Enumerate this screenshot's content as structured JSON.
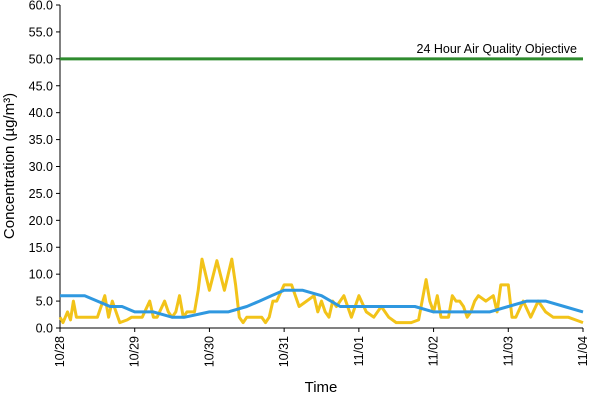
{
  "chart_data": {
    "type": "line",
    "title": "",
    "xlabel": "Time",
    "ylabel": "Concentration (µg/m³)",
    "ylim": [
      0,
      60
    ],
    "xlim": [
      "10/28",
      "11/04"
    ],
    "yticks": [
      "0.0",
      "5.0",
      "10.0",
      "15.0",
      "20.0",
      "25.0",
      "30.0",
      "35.0",
      "40.0",
      "45.0",
      "50.0",
      "55.0",
      "60.0"
    ],
    "xticks": [
      "10/28",
      "10/29",
      "10/30",
      "10/31",
      "11/01",
      "11/02",
      "11/03",
      "11/04"
    ],
    "grid": false,
    "legend": "none",
    "reference_line": {
      "label": "24 Hour Air Quality Objective",
      "value": 50.0,
      "color": "#2e8b2e"
    },
    "series": [
      {
        "color": "#f2c319",
        "x": [
          0.0,
          0.04,
          0.1,
          0.14,
          0.18,
          0.22,
          0.3,
          0.5,
          0.6,
          0.65,
          0.7,
          0.8,
          0.9,
          0.96,
          1.0,
          1.1,
          1.2,
          1.25,
          1.3,
          1.4,
          1.45,
          1.5,
          1.55,
          1.6,
          1.65,
          1.7,
          1.8,
          1.85,
          1.9,
          2.0,
          2.1,
          2.2,
          2.3,
          2.35,
          2.4,
          2.45,
          2.5,
          2.55,
          2.6,
          2.65,
          2.7,
          2.75,
          2.8,
          2.85,
          2.9,
          3.0,
          3.1,
          3.2,
          3.3,
          3.4,
          3.45,
          3.5,
          3.55,
          3.6,
          3.65,
          3.7,
          3.8,
          3.9,
          4.0,
          4.1,
          4.2,
          4.3,
          4.4,
          4.5,
          4.6,
          4.7,
          4.8,
          4.9,
          4.95,
          5.0,
          5.05,
          5.1,
          5.2,
          5.25,
          5.3,
          5.35,
          5.4,
          5.45,
          5.5,
          5.55,
          5.6,
          5.7,
          5.8,
          5.85,
          5.9,
          6.0,
          6.05,
          6.1,
          6.2,
          6.3,
          6.4,
          6.5,
          6.6,
          6.7,
          6.8,
          6.9,
          7.0
        ],
        "values": [
          2,
          1,
          3,
          1.5,
          5,
          2,
          2,
          2,
          6,
          2,
          5,
          1,
          1.5,
          2,
          2,
          2,
          5,
          2,
          2,
          5,
          3,
          2,
          3,
          6,
          2,
          3,
          3,
          7,
          12.8,
          7,
          12.5,
          7,
          12.8,
          8,
          2,
          1,
          2,
          2,
          2,
          2,
          2,
          1,
          2,
          5,
          5,
          8,
          8,
          4,
          5,
          6,
          3,
          5,
          3,
          2,
          5,
          4,
          6,
          2,
          6,
          3,
          2,
          4,
          2,
          1,
          1,
          1,
          1.5,
          9,
          5,
          3,
          6,
          2,
          2,
          6,
          5,
          5,
          4,
          2,
          3,
          5,
          6,
          5,
          6,
          3,
          8,
          8,
          2,
          2,
          5,
          2,
          5,
          3,
          2,
          2,
          2,
          1.5,
          1
        ],
        "values_note_removed": ""
      },
      {
        "color": "#2f98e0",
        "x": [
          0.0,
          0.33,
          0.5,
          0.67,
          0.83,
          1.0,
          1.25,
          1.5,
          1.67,
          2.0,
          2.25,
          2.5,
          2.67,
          2.83,
          3.0,
          3.25,
          3.5,
          3.75,
          4.0,
          4.25,
          4.5,
          4.75,
          5.0,
          5.25,
          5.5,
          5.75,
          6.0,
          6.25,
          6.5,
          6.75,
          7.0
        ],
        "values": [
          6,
          6,
          5,
          4,
          4,
          3,
          3,
          2,
          2,
          3,
          3,
          4,
          5,
          6,
          7,
          7,
          6,
          4,
          4,
          4,
          4,
          4,
          3,
          3,
          3,
          3,
          4,
          5,
          5,
          4,
          3
        ]
      }
    ]
  }
}
